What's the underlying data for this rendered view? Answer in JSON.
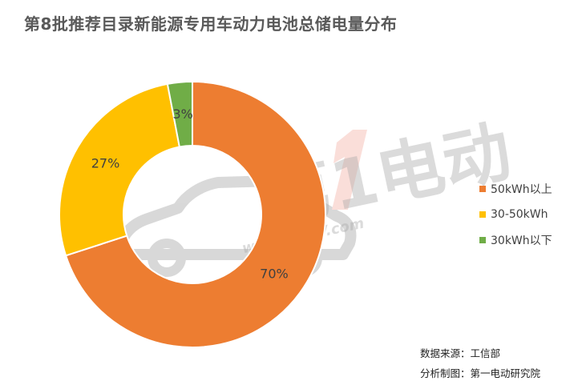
{
  "chart_data": {
    "type": "pie",
    "variant": "donut",
    "title": "第8批推荐目录新能源专用车动力电池总储电量分布",
    "categories": [
      "50kWh以上",
      "30-50kWh",
      "30kWh以下"
    ],
    "values": [
      70,
      27,
      3
    ],
    "data_labels": [
      "70%",
      "27%",
      "3%"
    ],
    "unit": "%",
    "colors": [
      "#ED7D31",
      "#FFC000",
      "#70AD47"
    ],
    "start_angle_deg": 0,
    "direction": "clockwise",
    "legend_position": "right"
  },
  "watermark": {
    "text": "第1电动",
    "subtext": "www.D1EV.com"
  },
  "footer": {
    "source": "数据来源：工信部",
    "analysis": "分析制图：第一电动研究院"
  }
}
